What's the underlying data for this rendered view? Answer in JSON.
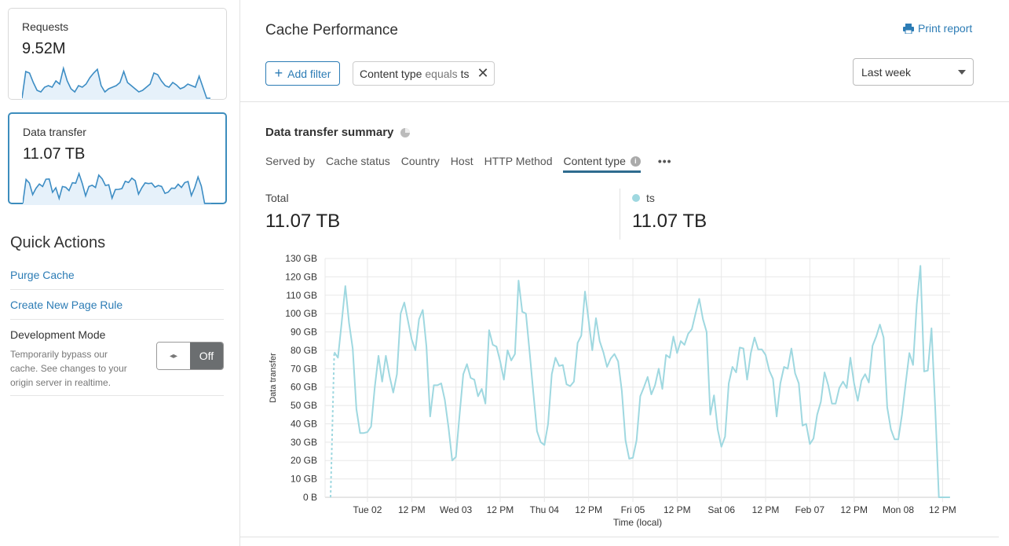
{
  "sidebar": {
    "cards": [
      {
        "label": "Requests",
        "value": "9.52M",
        "sparkline": [
          0,
          85,
          80,
          50,
          25,
          20,
          35,
          40,
          35,
          55,
          45,
          95,
          55,
          30,
          20,
          40,
          35,
          45,
          65,
          80,
          92,
          40,
          20,
          30,
          35,
          40,
          50,
          85,
          50,
          40,
          30,
          20,
          25,
          35,
          45,
          80,
          75,
          55,
          40,
          35,
          50,
          42,
          30,
          35,
          45,
          40,
          35,
          70,
          35,
          0,
          0
        ],
        "selected": false
      },
      {
        "label": "Data transfer",
        "value": "11.07 TB",
        "selected": true
      }
    ],
    "sparkline_color": "#3d8dc4",
    "quick_actions": {
      "title": "Quick Actions",
      "purge": "Purge Cache",
      "page_rule": "Create New Page Rule",
      "dev_mode": {
        "title": "Development Mode",
        "description": "Temporarily bypass our cache. See changes to your origin server in realtime.",
        "state": "Off",
        "knob_icon": "◂▸"
      }
    }
  },
  "header": {
    "title": "Cache Performance",
    "print": "Print report",
    "add_filter": "Add filter",
    "filter": {
      "field": "Content type",
      "op": "equals",
      "value": "ts"
    },
    "range": "Last week"
  },
  "summary": {
    "title": "Data transfer summary",
    "tabs": [
      "Served by",
      "Cache status",
      "Country",
      "Host",
      "HTTP Method",
      "Content type"
    ],
    "active_tab": "Content type",
    "more": "•••",
    "total_label": "Total",
    "total_value": "11.07 TB",
    "series_label": "ts",
    "series_value": "11.07 TB"
  },
  "chart_data": {
    "type": "line",
    "xlabel": "Time (local)",
    "ylabel": "Data transfer",
    "ylim": [
      0,
      130
    ],
    "grid": true,
    "line_color": "#9fd8e0",
    "yticks": [
      0,
      10,
      20,
      30,
      40,
      50,
      60,
      70,
      80,
      90,
      100,
      110,
      120,
      130
    ],
    "ytick_labels": [
      "0 B",
      "10 GB",
      "20 GB",
      "30 GB",
      "40 GB",
      "50 GB",
      "60 GB",
      "70 GB",
      "80 GB",
      "90 GB",
      "100 GB",
      "110 GB",
      "120 GB",
      "130 GB"
    ],
    "xticks": [
      {
        "x": "Feb 02 00:00",
        "label": "Tue 02"
      },
      {
        "x": "Feb 02 12:00",
        "label": "12 PM"
      },
      {
        "x": "Feb 03 00:00",
        "label": "Wed 03"
      },
      {
        "x": "Feb 03 12:00",
        "label": "12 PM"
      },
      {
        "x": "Feb 04 00:00",
        "label": "Thu 04"
      },
      {
        "x": "Feb 04 12:00",
        "label": "12 PM"
      },
      {
        "x": "Feb 05 00:00",
        "label": "Fri 05"
      },
      {
        "x": "Feb 05 12:00",
        "label": "12 PM"
      },
      {
        "x": "Feb 06 00:00",
        "label": "Sat 06"
      },
      {
        "x": "Feb 06 12:00",
        "label": "12 PM"
      },
      {
        "x": "Feb 07 00:00",
        "label": "Feb 07"
      },
      {
        "x": "Feb 07 12:00",
        "label": "12 PM"
      },
      {
        "x": "Feb 08 00:00",
        "label": "Mon 08"
      },
      {
        "x": "Feb 08 12:00",
        "label": "12 PM"
      }
    ],
    "series": [
      {
        "name": "ts",
        "unit": "GB",
        "first_segment_dashed": true,
        "x": [
          "Feb 01 14:00",
          "Feb 01 15:00",
          "Feb 01 16:00",
          "Feb 01 17:00",
          "Feb 01 18:00",
          "Feb 01 19:00",
          "Feb 01 20:00",
          "Feb 01 21:00",
          "Feb 01 22:00",
          "Feb 01 23:00",
          "Feb 02 00:00",
          "Feb 02 01:00",
          "Feb 02 02:00",
          "Feb 02 03:00",
          "Feb 02 04:00",
          "Feb 02 05:00",
          "Feb 02 06:00",
          "Feb 02 07:00",
          "Feb 02 08:00",
          "Feb 02 09:00",
          "Feb 02 10:00",
          "Feb 02 11:00",
          "Feb 02 12:00",
          "Feb 02 13:00",
          "Feb 02 14:00",
          "Feb 02 15:00",
          "Feb 02 16:00",
          "Feb 02 17:00",
          "Feb 02 18:00",
          "Feb 02 19:00",
          "Feb 02 20:00",
          "Feb 02 21:00",
          "Feb 02 22:00",
          "Feb 02 23:00",
          "Feb 03 00:00",
          "Feb 03 01:00",
          "Feb 03 02:00",
          "Feb 03 03:00",
          "Feb 03 04:00",
          "Feb 03 05:00",
          "Feb 03 06:00",
          "Feb 03 07:00",
          "Feb 03 08:00",
          "Feb 03 09:00",
          "Feb 03 10:00",
          "Feb 03 11:00",
          "Feb 03 12:00",
          "Feb 03 13:00",
          "Feb 03 14:00",
          "Feb 03 15:00",
          "Feb 03 16:00",
          "Feb 03 17:00",
          "Feb 03 18:00",
          "Feb 03 19:00",
          "Feb 03 20:00",
          "Feb 03 21:00",
          "Feb 03 22:00",
          "Feb 03 23:00",
          "Feb 04 00:00",
          "Feb 04 01:00",
          "Feb 04 02:00",
          "Feb 04 03:00",
          "Feb 04 04:00",
          "Feb 04 05:00",
          "Feb 04 06:00",
          "Feb 04 07:00",
          "Feb 04 08:00",
          "Feb 04 09:00",
          "Feb 04 10:00",
          "Feb 04 11:00",
          "Feb 04 12:00",
          "Feb 04 13:00",
          "Feb 04 14:00",
          "Feb 04 15:00",
          "Feb 04 16:00",
          "Feb 04 17:00",
          "Feb 04 18:00",
          "Feb 04 19:00",
          "Feb 04 20:00",
          "Feb 04 21:00",
          "Feb 04 22:00",
          "Feb 04 23:00",
          "Feb 05 00:00",
          "Feb 05 01:00",
          "Feb 05 02:00",
          "Feb 05 03:00",
          "Feb 05 04:00",
          "Feb 05 05:00",
          "Feb 05 06:00",
          "Feb 05 07:00",
          "Feb 05 08:00",
          "Feb 05 09:00",
          "Feb 05 10:00",
          "Feb 05 11:00",
          "Feb 05 12:00",
          "Feb 05 13:00",
          "Feb 05 14:00",
          "Feb 05 15:00",
          "Feb 05 16:00",
          "Feb 05 17:00",
          "Feb 05 18:00",
          "Feb 05 19:00",
          "Feb 05 20:00",
          "Feb 05 21:00",
          "Feb 05 22:00",
          "Feb 05 23:00",
          "Feb 06 00:00",
          "Feb 06 01:00",
          "Feb 06 02:00",
          "Feb 06 03:00",
          "Feb 06 04:00",
          "Feb 06 05:00",
          "Feb 06 06:00",
          "Feb 06 07:00",
          "Feb 06 08:00",
          "Feb 06 09:00",
          "Feb 06 10:00",
          "Feb 06 11:00",
          "Feb 06 12:00",
          "Feb 06 13:00",
          "Feb 06 14:00",
          "Feb 06 15:00",
          "Feb 06 16:00",
          "Feb 06 17:00",
          "Feb 06 18:00",
          "Feb 06 19:00",
          "Feb 06 20:00",
          "Feb 06 21:00",
          "Feb 06 22:00",
          "Feb 06 23:00",
          "Feb 07 00:00",
          "Feb 07 01:00",
          "Feb 07 02:00",
          "Feb 07 03:00",
          "Feb 07 04:00",
          "Feb 07 05:00",
          "Feb 07 06:00",
          "Feb 07 07:00",
          "Feb 07 08:00",
          "Feb 07 09:00",
          "Feb 07 10:00",
          "Feb 07 11:00",
          "Feb 07 12:00",
          "Feb 07 13:00",
          "Feb 07 14:00",
          "Feb 07 15:00",
          "Feb 07 16:00",
          "Feb 07 17:00",
          "Feb 07 18:00",
          "Feb 07 19:00",
          "Feb 07 20:00",
          "Feb 07 21:00",
          "Feb 07 22:00",
          "Feb 07 23:00",
          "Feb 08 00:00",
          "Feb 08 01:00",
          "Feb 08 02:00",
          "Feb 08 03:00",
          "Feb 08 04:00",
          "Feb 08 05:00",
          "Feb 08 06:00",
          "Feb 08 07:00",
          "Feb 08 08:00",
          "Feb 08 09:00",
          "Feb 08 10:00",
          "Feb 08 11:00",
          "Feb 08 12:00",
          "Feb 08 13:00",
          "Feb 08 14:00"
        ],
        "values": [
          0,
          79,
          76,
          95,
          115,
          95,
          81,
          48,
          35,
          35,
          35.5,
          38.5,
          60,
          77,
          63,
          77,
          66,
          57,
          67,
          100,
          106,
          96,
          86,
          80,
          97,
          102,
          82,
          44,
          61,
          61,
          62,
          53,
          38,
          20,
          22,
          45,
          67,
          72.5,
          65,
          64,
          55,
          59,
          51,
          91,
          83,
          82,
          74,
          64,
          80,
          74.5,
          78,
          118,
          101,
          100,
          79,
          57,
          36,
          30,
          28.5,
          40,
          67,
          76,
          71.5,
          72,
          61.5,
          60.5,
          63,
          84,
          88,
          112,
          96,
          80,
          97.5,
          85,
          79,
          71,
          75.5,
          78,
          74,
          58,
          31,
          21,
          21.5,
          31,
          55,
          60,
          65.5,
          56,
          61,
          70,
          59,
          77.5,
          76,
          87.5,
          78.5,
          85,
          83,
          89,
          91.5,
          100,
          108,
          97,
          90,
          45,
          55.5,
          37,
          27.5,
          33,
          62,
          71,
          68,
          81.5,
          81,
          64,
          78.5,
          87,
          80.5,
          80.5,
          77.5,
          69,
          64.5,
          44,
          62,
          71,
          70,
          81,
          67.5,
          62,
          39,
          40,
          29,
          32,
          45,
          52,
          68,
          61,
          51,
          51,
          59.5,
          63,
          59.5,
          76,
          62,
          52.5,
          63.5,
          67,
          62.5,
          82.5,
          87.5,
          94,
          87,
          49,
          37,
          31.5,
          31.5,
          45,
          62,
          78.5,
          72,
          105,
          126,
          68.5,
          69,
          92,
          49,
          0,
          0,
          0,
          0
        ]
      }
    ]
  }
}
